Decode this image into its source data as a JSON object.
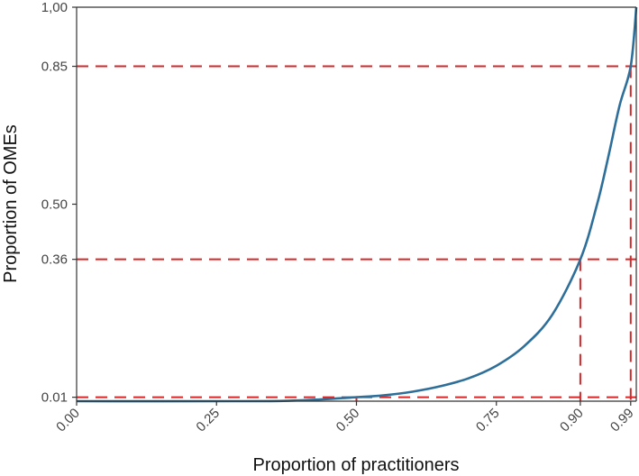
{
  "chart_data": {
    "type": "line",
    "title": "",
    "xlabel": "Proportion of practitioners",
    "ylabel": "Proportion of OMEs",
    "xlim": [
      0,
      1
    ],
    "ylim": [
      0,
      1
    ],
    "x_ticks": [
      {
        "value": 0.0,
        "label": "0.00"
      },
      {
        "value": 0.25,
        "label": "0.25"
      },
      {
        "value": 0.5,
        "label": "0.50"
      },
      {
        "value": 0.75,
        "label": "0.75"
      },
      {
        "value": 0.9,
        "label": "0.90"
      },
      {
        "value": 0.99,
        "label": "0.99"
      }
    ],
    "y_ticks": [
      {
        "value": 0.01,
        "label": "0.01"
      },
      {
        "value": 0.36,
        "label": "0.36"
      },
      {
        "value": 0.5,
        "label": "0.50"
      },
      {
        "value": 0.85,
        "label": "0.85"
      },
      {
        "value": 1.0,
        "label": "1,00"
      }
    ],
    "series": [
      {
        "color": "#2e6f9a",
        "points": [
          [
            0.0,
            0.0
          ],
          [
            0.3,
            0.0
          ],
          [
            0.4,
            0.002
          ],
          [
            0.5,
            0.01
          ],
          [
            0.55,
            0.015
          ],
          [
            0.6,
            0.024
          ],
          [
            0.65,
            0.038
          ],
          [
            0.7,
            0.058
          ],
          [
            0.75,
            0.09
          ],
          [
            0.8,
            0.14
          ],
          [
            0.85,
            0.22
          ],
          [
            0.9,
            0.36
          ],
          [
            0.93,
            0.5
          ],
          [
            0.95,
            0.62
          ],
          [
            0.97,
            0.75
          ],
          [
            0.99,
            0.85
          ],
          [
            1.0,
            1.0
          ]
        ]
      }
    ],
    "reference_lines": [
      {
        "x": 0.5,
        "y": 0.01
      },
      {
        "x": 0.9,
        "y": 0.36
      },
      {
        "x": 0.99,
        "y": 0.85
      }
    ],
    "reference_color": "#d62728",
    "grid": false,
    "legend": "none"
  }
}
